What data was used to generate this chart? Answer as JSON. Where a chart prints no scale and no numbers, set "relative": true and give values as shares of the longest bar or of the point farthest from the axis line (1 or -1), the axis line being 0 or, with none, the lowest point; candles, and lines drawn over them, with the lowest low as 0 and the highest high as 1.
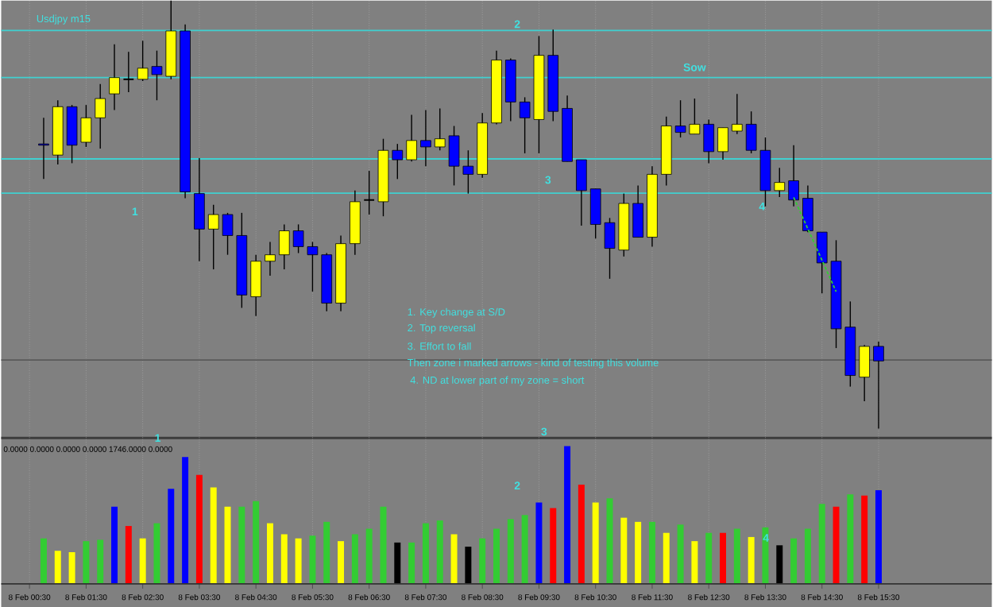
{
  "chart_data": [
    {
      "type": "candlestick",
      "relative": true,
      "grid": "x",
      "categories": [
        null,
        null,
        null,
        null,
        null,
        null,
        null,
        null,
        null,
        null,
        null,
        null,
        null,
        null,
        null,
        null,
        null,
        null,
        null,
        null,
        null,
        null,
        null,
        null,
        null,
        null,
        null,
        null,
        null,
        null,
        null,
        null,
        null,
        null,
        null,
        null,
        null,
        null,
        null,
        null,
        null,
        null,
        null,
        null,
        null,
        null,
        null,
        null,
        null,
        null,
        null,
        null,
        null,
        null,
        null,
        null,
        null,
        null,
        null,
        null,
        null
      ],
      "ohlc": [
        null,
        [
          0.665,
          0.726,
          0.583,
          0.662
        ],
        [
          0.639,
          0.767,
          0.617,
          0.752
        ],
        [
          0.752,
          0.756,
          0.62,
          0.662
        ],
        [
          0.669,
          0.756,
          0.658,
          0.726
        ],
        [
          0.726,
          0.805,
          0.654,
          0.771
        ],
        [
          0.782,
          0.898,
          0.744,
          0.82
        ],
        [
          0.816,
          0.88,
          0.786,
          0.816
        ],
        [
          0.816,
          0.906,
          0.812,
          0.842
        ],
        [
          0.846,
          0.883,
          0.767,
          0.827
        ],
        [
          0.823,
          1.0,
          0.816,
          0.929
        ],
        [
          0.929,
          0.944,
          0.538,
          0.553
        ],
        [
          0.549,
          0.632,
          0.391,
          0.466
        ],
        [
          0.466,
          0.523,
          0.372,
          0.5
        ],
        [
          0.5,
          0.504,
          0.406,
          0.451
        ],
        [
          0.451,
          0.504,
          0.282,
          0.312
        ],
        [
          0.308,
          0.406,
          0.263,
          0.391
        ],
        [
          0.391,
          0.436,
          0.357,
          0.406
        ],
        [
          0.406,
          0.477,
          0.372,
          0.462
        ],
        [
          0.462,
          0.477,
          0.41,
          0.425
        ],
        [
          0.425,
          0.436,
          0.32,
          0.406
        ],
        [
          0.406,
          0.41,
          0.274,
          0.293
        ],
        [
          0.293,
          0.451,
          0.274,
          0.432
        ],
        [
          0.432,
          0.556,
          0.406,
          0.53
        ],
        [
          0.534,
          0.602,
          0.5,
          0.534
        ],
        [
          0.53,
          0.677,
          0.496,
          0.65
        ],
        [
          0.65,
          0.665,
          0.583,
          0.628
        ],
        [
          0.628,
          0.733,
          0.624,
          0.673
        ],
        [
          0.673,
          0.744,
          0.613,
          0.658
        ],
        [
          0.658,
          0.748,
          0.65,
          0.677
        ],
        [
          0.684,
          0.707,
          0.568,
          0.613
        ],
        [
          0.613,
          0.65,
          0.549,
          0.594
        ],
        [
          0.594,
          0.737,
          0.586,
          0.714
        ],
        [
          0.714,
          0.883,
          0.711,
          0.861
        ],
        [
          0.861,
          0.865,
          0.718,
          0.763
        ],
        [
          0.763,
          0.774,
          0.643,
          0.726
        ],
        [
          0.722,
          0.917,
          0.643,
          0.872
        ],
        [
          0.872,
          0.932,
          0.718,
          0.741
        ],
        [
          0.748,
          0.778,
          0.624,
          0.624
        ],
        [
          0.628,
          0.628,
          0.474,
          0.556
        ],
        [
          0.56,
          0.56,
          0.444,
          0.477
        ],
        [
          0.481,
          0.492,
          0.35,
          0.421
        ],
        [
          0.417,
          0.549,
          0.402,
          0.526
        ],
        [
          0.526,
          0.568,
          0.447,
          0.447
        ],
        [
          0.447,
          0.613,
          0.425,
          0.594
        ],
        [
          0.594,
          0.729,
          0.568,
          0.707
        ],
        [
          0.707,
          0.767,
          0.68,
          0.692
        ],
        [
          0.688,
          0.771,
          0.688,
          0.711
        ],
        [
          0.711,
          0.722,
          0.62,
          0.647
        ],
        [
          0.647,
          0.703,
          0.628,
          0.703
        ],
        [
          0.695,
          0.782,
          0.688,
          0.711
        ],
        [
          0.711,
          0.741,
          0.643,
          0.65
        ],
        [
          0.65,
          0.68,
          0.519,
          0.556
        ],
        [
          0.556,
          0.609,
          0.541,
          0.575
        ],
        [
          0.579,
          0.662,
          0.519,
          0.534
        ],
        [
          0.538,
          0.568,
          0.459,
          0.462
        ],
        [
          0.459,
          0.459,
          0.316,
          0.387
        ],
        [
          0.391,
          0.44,
          0.188,
          0.233
        ],
        [
          0.237,
          0.297,
          0.098,
          0.124
        ],
        [
          0.12,
          0.195,
          0.064,
          0.192
        ],
        [
          0.192,
          0.203,
          0.0,
          0.158
        ]
      ],
      "colors": [
        null,
        "#0000ff",
        "#ffff00",
        "#0000ff",
        "#ffff00",
        "#ffff00",
        "#ffff00",
        "#000000",
        "#ffff00",
        "#0000ff",
        "#ffff00",
        "#0000ff",
        "#0000ff",
        "#ffff00",
        "#0000ff",
        "#0000ff",
        "#ffff00",
        "#ffff00",
        "#ffff00",
        "#0000ff",
        "#0000ff",
        "#0000ff",
        "#ffff00",
        "#ffff00",
        "#000000",
        "#ffff00",
        "#0000ff",
        "#ffff00",
        "#0000ff",
        "#ffff00",
        "#0000ff",
        "#0000ff",
        "#ffff00",
        "#ffff00",
        "#0000ff",
        "#0000ff",
        "#ffff00",
        "#0000ff",
        "#0000ff",
        "#0000ff",
        "#0000ff",
        "#0000ff",
        "#ffff00",
        "#0000ff",
        "#ffff00",
        "#ffff00",
        "#0000ff",
        "#ffff00",
        "#0000ff",
        "#ffff00",
        "#ffff00",
        "#0000ff",
        "#0000ff",
        "#ffff00",
        "#0000ff",
        "#0000ff",
        "#0000ff",
        "#0000ff",
        "#0000ff",
        "#ffff00",
        "#0000ff"
      ],
      "series": [
        {
          "type": "line",
          "color": "#33cc33",
          "line_style": "dashed",
          "values": [
            null,
            null,
            null,
            null,
            null,
            null,
            null,
            null,
            null,
            null,
            null,
            null,
            null,
            null,
            null,
            null,
            null,
            null,
            null,
            null,
            null,
            null,
            null,
            null,
            null,
            null,
            null,
            null,
            null,
            null,
            null,
            null,
            null,
            null,
            null,
            null,
            null,
            null,
            null,
            null,
            null,
            null,
            null,
            null,
            null,
            null,
            null,
            null,
            null,
            null,
            null,
            null,
            null,
            null,
            0.54,
            null,
            null,
            0.32,
            null,
            null,
            null
          ]
        }
      ],
      "ref_lines": [
        {
          "axis": "y",
          "value": 0.93,
          "color": "#40d0d0"
        },
        {
          "axis": "y",
          "value": 0.82,
          "color": "#40d0d0"
        },
        {
          "axis": "y",
          "value": 0.63,
          "color": "#40d0d0"
        },
        {
          "axis": "y",
          "value": 0.55,
          "color": "#40d0d0"
        },
        {
          "axis": "y",
          "value": 0.16,
          "color": "#5a5a5a"
        }
      ],
      "annotations": [
        "Usdjpy m15",
        "1. Key change at S/D",
        "2. Top reversal",
        "3. Effort to fall",
        "Then zone i marked arrows - kind of testing this volume",
        " 4. ND at lower part of my zone = short",
        "1",
        "2",
        "3",
        "4",
        "Sow"
      ]
    },
    {
      "type": "bar",
      "relative": true,
      "grid": "x",
      "categories": [
        "8 Feb 00:30",
        null,
        null,
        null,
        "8 Feb 01:30",
        null,
        null,
        null,
        "8 Feb 02:30",
        null,
        null,
        null,
        "8 Feb 03:30",
        null,
        null,
        null,
        "8 Feb 04:30",
        null,
        null,
        null,
        "8 Feb 05:30",
        null,
        null,
        null,
        "8 Feb 06:30",
        null,
        null,
        null,
        "8 Feb 07:30",
        null,
        null,
        null,
        "8 Feb 08:30",
        null,
        null,
        null,
        "8 Feb 09:30",
        null,
        null,
        null,
        "8 Feb 10:30",
        null,
        null,
        null,
        "8 Feb 11:30",
        null,
        null,
        null,
        "8 Feb 12:30",
        null,
        null,
        null,
        "8 Feb 13:30",
        null,
        null,
        null,
        "8 Feb 14:30",
        null,
        null,
        null,
        "8 Feb 15:30"
      ],
      "values": [
        null,
        0.33,
        0.24,
        0.23,
        0.31,
        0.32,
        0.56,
        0.42,
        0.33,
        0.44,
        0.69,
        0.92,
        0.79,
        0.7,
        0.56,
        0.56,
        0.6,
        0.44,
        0.36,
        0.33,
        0.35,
        0.45,
        0.31,
        0.36,
        0.4,
        0.56,
        0.3,
        0.3,
        0.44,
        0.46,
        0.36,
        0.27,
        0.33,
        0.4,
        0.47,
        0.5,
        0.59,
        0.55,
        1,
        0.72,
        0.59,
        0.62,
        0.48,
        0.45,
        0.45,
        0.37,
        0.43,
        0.31,
        0.37,
        0.37,
        0.4,
        0.34,
        0.41,
        0.28,
        0.33,
        0.4,
        0.58,
        0.56,
        0.65,
        0.64,
        0.68
      ],
      "colors": [
        null,
        "#33cc33",
        "#ffff00",
        "#ffff00",
        "#33cc33",
        "#33cc33",
        "#0000ff",
        "#ff0000",
        "#ffff00",
        "#33cc33",
        "#0000ff",
        "#0000ff",
        "#ff0000",
        "#ffff00",
        "#ffff00",
        "#33cc33",
        "#33cc33",
        "#ffff00",
        "#ffff00",
        "#ffff00",
        "#33cc33",
        "#33cc33",
        "#ffff00",
        "#33cc33",
        "#33cc33",
        "#33cc33",
        "#000000",
        "#33cc33",
        "#33cc33",
        "#33cc33",
        "#ffff00",
        "#000000",
        "#33cc33",
        "#33cc33",
        "#33cc33",
        "#33cc33",
        "#0000ff",
        "#ff0000",
        "#0000ff",
        "#ff0000",
        "#ffff00",
        "#33cc33",
        "#ffff00",
        "#ffff00",
        "#33cc33",
        "#ffff00",
        "#33cc33",
        "#ffff00",
        "#33cc33",
        "#ff0000",
        "#33cc33",
        "#ffff00",
        "#33cc33",
        "#000000",
        "#33cc33",
        "#33cc33",
        "#33cc33",
        "#ff0000",
        "#33cc33",
        "#ff0000",
        "#0000ff"
      ],
      "annotations": [
        "0.0000 0.0000 0.0000 0.0000 1746.0000 0.0000",
        "1",
        "2",
        "3",
        "4"
      ]
    }
  ]
}
